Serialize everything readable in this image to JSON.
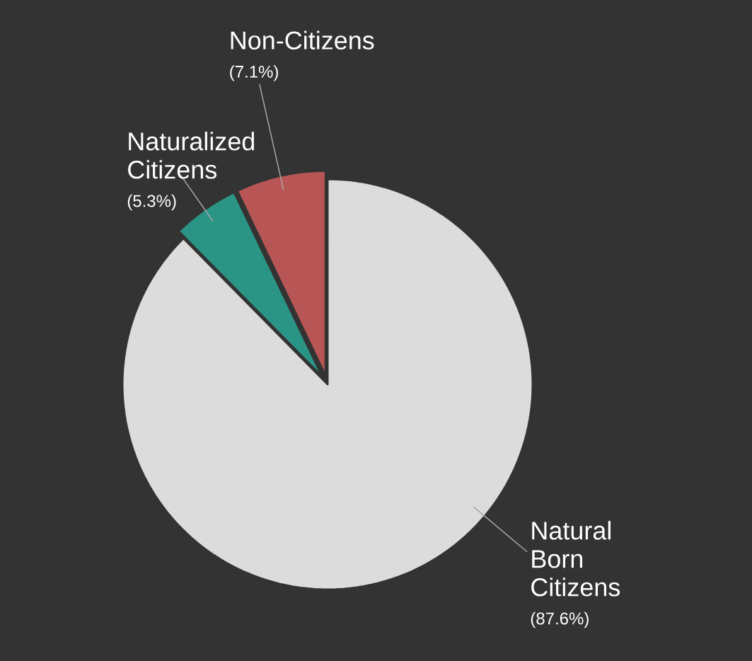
{
  "chart_data": {
    "type": "pie",
    "categories": [
      "Natural Born Citizens",
      "Naturalized Citizens",
      "Non-Citizens"
    ],
    "values": [
      87.6,
      5.3,
      7.1
    ],
    "colors": [
      "#dcdcdc",
      "#2a9485",
      "#b85555"
    ],
    "value_labels": [
      "(87.6%)",
      "(5.3%)",
      "(7.1%)"
    ]
  }
}
